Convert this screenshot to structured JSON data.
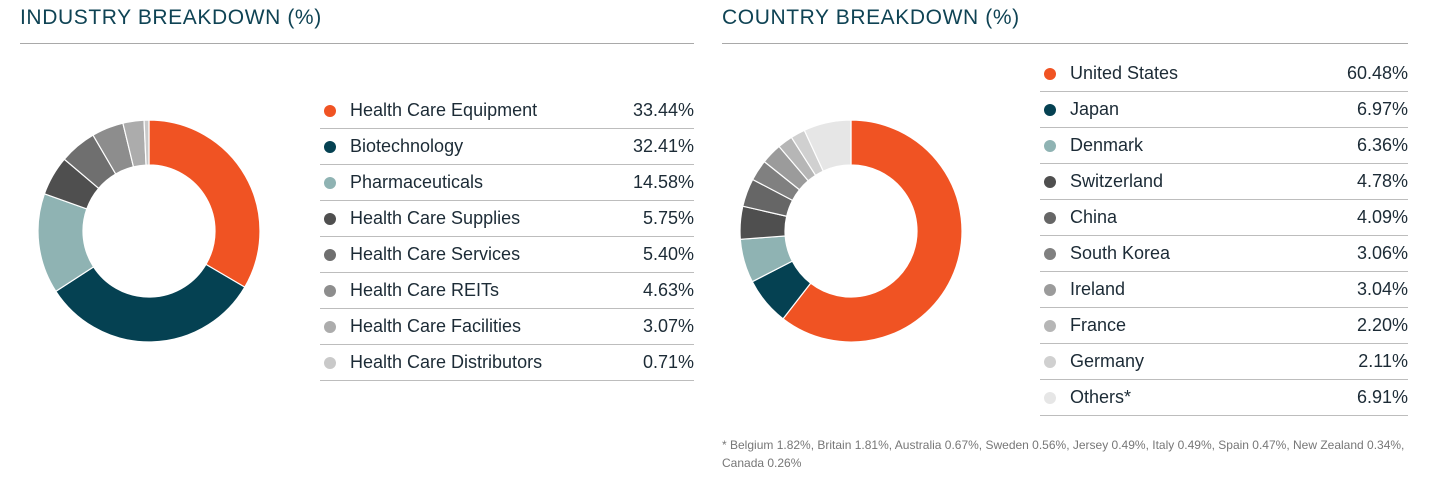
{
  "chart_data": [
    {
      "type": "pie",
      "title": "INDUSTRY BREAKDOWN (%)",
      "categories": [
        "Health Care Equipment",
        "Biotechnology",
        "Pharmaceuticals",
        "Health Care Supplies",
        "Health Care Services",
        "Health Care REITs",
        "Health Care Facilities",
        "Health Care Distributors"
      ],
      "values": [
        33.44,
        32.41,
        14.58,
        5.75,
        5.4,
        4.63,
        3.07,
        0.71
      ],
      "value_labels": [
        "33.44%",
        "32.41%",
        "14.58%",
        "5.75%",
        "5.40%",
        "4.63%",
        "3.07%",
        "0.71%"
      ],
      "colors": [
        "#f05323",
        "#054152",
        "#8fb3b3",
        "#4f4f4f",
        "#6f6f6f",
        "#8d8d8d",
        "#acacac",
        "#c9c9c9"
      ],
      "donut": true,
      "legend_position": "right"
    },
    {
      "type": "pie",
      "title": "COUNTRY BREAKDOWN (%)",
      "categories": [
        "United States",
        "Japan",
        "Denmark",
        "Switzerland",
        "China",
        "South Korea",
        "Ireland",
        "France",
        "Germany",
        "Others*"
      ],
      "values": [
        60.48,
        6.97,
        6.36,
        4.78,
        4.09,
        3.06,
        3.04,
        2.2,
        2.11,
        6.91
      ],
      "value_labels": [
        "60.48%",
        "6.97%",
        "6.36%",
        "4.78%",
        "4.09%",
        "3.06%",
        "3.04%",
        "2.20%",
        "2.11%",
        "6.91%"
      ],
      "colors": [
        "#f05323",
        "#054152",
        "#8fb3b3",
        "#4f4f4f",
        "#666666",
        "#808080",
        "#9b9b9b",
        "#b6b6b6",
        "#d0d0d0",
        "#e6e6e6"
      ],
      "donut": true,
      "legend_position": "right",
      "footnote": "* Belgium 1.82%, Britain 1.81%, Australia 0.67%, Sweden 0.56%, Jersey 0.49%, Italy 0.49%, Spain 0.47%, New Zealand 0.34%, Canada 0.26%"
    }
  ]
}
